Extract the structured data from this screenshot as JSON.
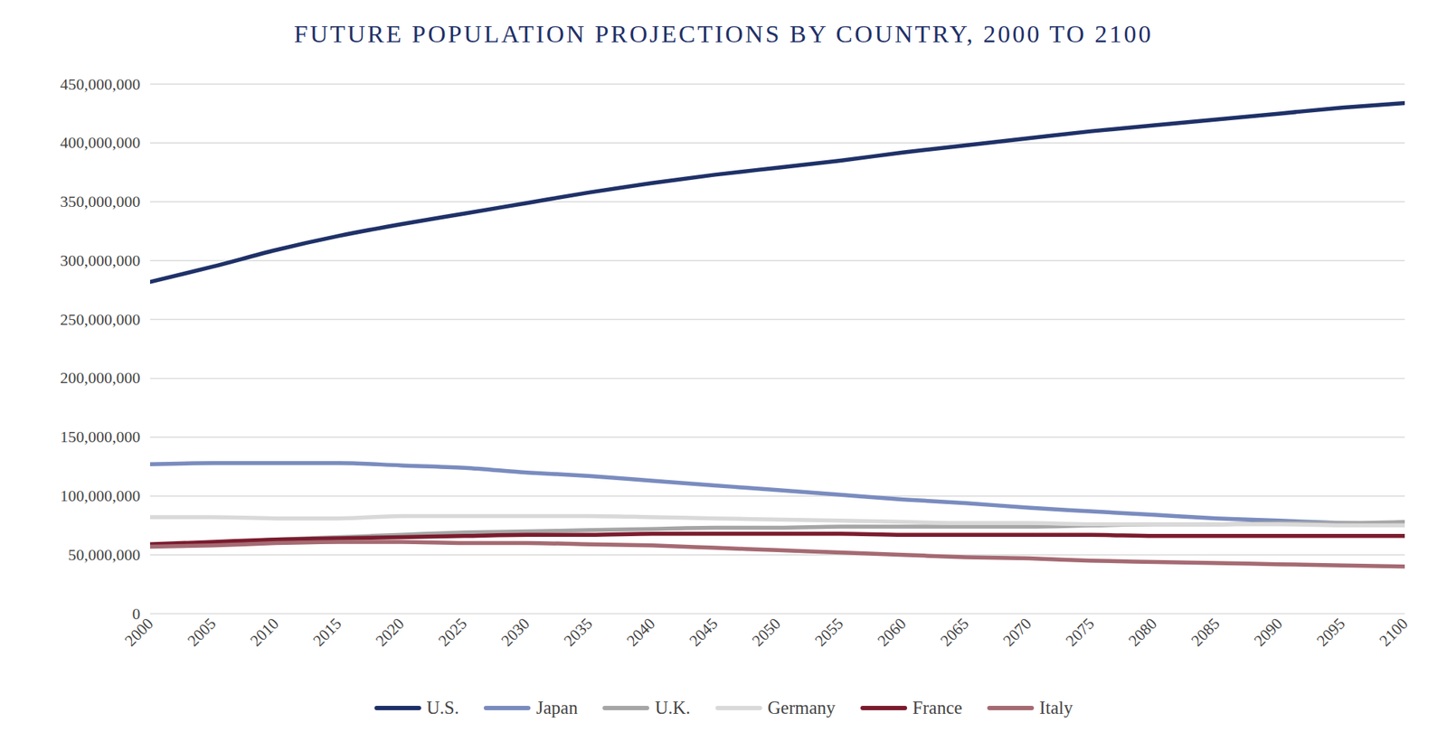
{
  "chart_data": {
    "type": "line",
    "title": "FUTURE POPULATION PROJECTIONS BY COUNTRY, 2000 TO 2100",
    "x": [
      2000,
      2005,
      2010,
      2015,
      2020,
      2025,
      2030,
      2035,
      2040,
      2045,
      2050,
      2055,
      2060,
      2065,
      2070,
      2075,
      2080,
      2085,
      2090,
      2095,
      2100
    ],
    "xlim": [
      2000,
      2100
    ],
    "xticks": [
      2000,
      2005,
      2010,
      2015,
      2020,
      2025,
      2030,
      2035,
      2040,
      2045,
      2050,
      2055,
      2060,
      2065,
      2070,
      2075,
      2080,
      2085,
      2090,
      2095,
      2100
    ],
    "ylim": [
      0,
      450000000
    ],
    "yticks": [
      0,
      {
        "value": 50000000,
        "label": "50,000,000"
      },
      {
        "value": 100000000,
        "label": "100,000,000"
      },
      {
        "value": 150000000,
        "label": "150,000,000"
      },
      {
        "value": 200000000,
        "label": "200,000,000"
      },
      {
        "value": 250000000,
        "label": "250,000,000"
      },
      {
        "value": 300000000,
        "label": "300,000,000"
      },
      {
        "value": 350000000,
        "label": "350,000,000"
      },
      {
        "value": 400000000,
        "label": "400,000,000"
      },
      {
        "value": 450000000,
        "label": "450,000,000"
      }
    ],
    "grid": true,
    "legend": "bottom",
    "series": [
      {
        "name": "U.S.",
        "color": "#1f3168",
        "values": [
          282000000,
          295000000,
          309000000,
          321000000,
          331000000,
          340000000,
          349000000,
          358000000,
          366000000,
          373000000,
          379000000,
          385000000,
          392000000,
          398000000,
          404000000,
          410000000,
          415000000,
          420000000,
          425000000,
          430000000,
          434000000
        ]
      },
      {
        "name": "Japan",
        "color": "#7a8cbf",
        "values": [
          127000000,
          128000000,
          128000000,
          128000000,
          126000000,
          124000000,
          120000000,
          117000000,
          113000000,
          109000000,
          105000000,
          101000000,
          97000000,
          94000000,
          90000000,
          87000000,
          84000000,
          81000000,
          79000000,
          77000000,
          76000000
        ]
      },
      {
        "name": "U.K.",
        "color": "#a6a6a6",
        "values": [
          59000000,
          60000000,
          63000000,
          65000000,
          67000000,
          69000000,
          70000000,
          71000000,
          72000000,
          73000000,
          73000000,
          74000000,
          74000000,
          74000000,
          74000000,
          75000000,
          76000000,
          76000000,
          77000000,
          77000000,
          78000000
        ]
      },
      {
        "name": "Germany",
        "color": "#d9d9d9",
        "values": [
          82000000,
          82000000,
          81000000,
          81000000,
          83000000,
          83000000,
          83000000,
          83000000,
          82000000,
          81000000,
          80000000,
          79000000,
          78000000,
          77000000,
          77000000,
          76000000,
          76000000,
          76000000,
          76000000,
          75000000,
          75000000
        ]
      },
      {
        "name": "France",
        "color": "#7b1c2e",
        "values": [
          59000000,
          61000000,
          63000000,
          64000000,
          65000000,
          66000000,
          67000000,
          67000000,
          68000000,
          68000000,
          68000000,
          68000000,
          67000000,
          67000000,
          67000000,
          67000000,
          66000000,
          66000000,
          66000000,
          66000000,
          66000000
        ]
      },
      {
        "name": "Italy",
        "color": "#a56a72",
        "values": [
          57000000,
          58000000,
          60000000,
          61000000,
          61000000,
          60000000,
          60000000,
          59000000,
          58000000,
          56000000,
          54000000,
          52000000,
          50000000,
          48000000,
          47000000,
          45000000,
          44000000,
          43000000,
          42000000,
          41000000,
          40000000
        ]
      }
    ]
  }
}
